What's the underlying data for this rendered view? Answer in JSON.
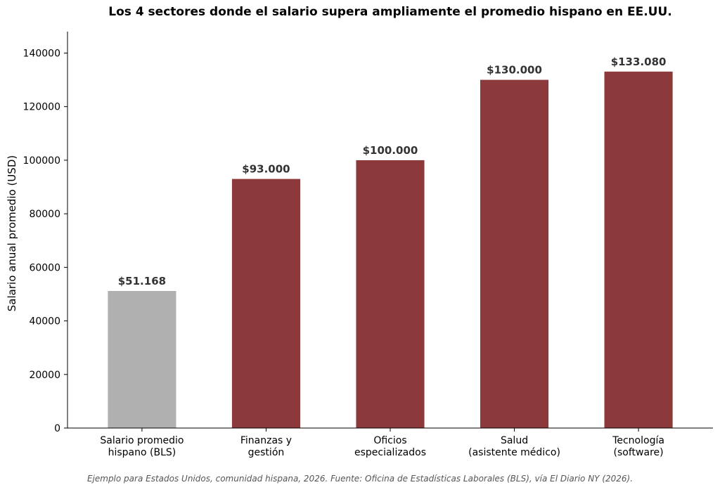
{
  "chart_data": {
    "type": "bar",
    "title": "Los 4 sectores donde el salario supera ampliamente el promedio hispano en EE.UU.",
    "xlabel": "",
    "ylabel": "Salario anual promedio (USD)",
    "ylim": [
      0,
      148000
    ],
    "yticks": [
      0,
      20000,
      40000,
      60000,
      80000,
      100000,
      120000,
      140000
    ],
    "grid": false,
    "categories": [
      [
        "Salario promedio",
        "hispano (BLS)"
      ],
      [
        "Finanzas y",
        "gestión"
      ],
      [
        "Oficios",
        "especializados"
      ],
      [
        "Salud",
        "(asistente médico)"
      ],
      [
        "Tecnología",
        "(software)"
      ]
    ],
    "values": [
      51168,
      93000,
      100000,
      130000,
      133080
    ],
    "value_labels": [
      "$51.168",
      "$93.000",
      "$100.000",
      "$130.000",
      "$133.080"
    ],
    "colors": [
      "#b0b0b0",
      "#8b393a",
      "#8b393a",
      "#8b393a",
      "#8b393a"
    ],
    "label_color": "#333333",
    "source": "Ejemplo para Estados Unidos, comunidad hispana, 2026. Fuente: Oficina de Estadísticas Laborales (BLS), vía El Diario NY (2026)."
  }
}
